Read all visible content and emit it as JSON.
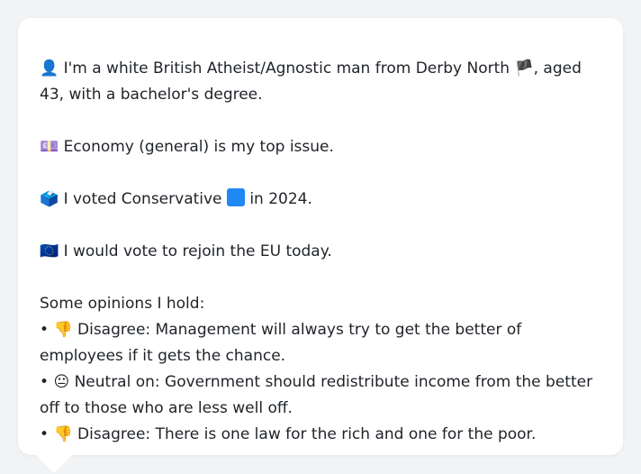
{
  "profile": {
    "intro_icon": "👤",
    "intro_text": "I'm a white British Atheist/Agnostic man from Derby North",
    "flag_icon": "🏴",
    "intro_tail": ", aged 43, with a bachelor's degree.",
    "economy_icon": "💷",
    "economy_text": "Economy (general) is my top issue.",
    "vote_icon": "🗳️",
    "vote_text_1": "I voted Conservative",
    "party_color": "#1f88f3",
    "vote_text_2": "in 2024.",
    "eu_icon": "🇪🇺",
    "eu_text": "I would vote to rejoin the EU today.",
    "opinions_heading": "Some opinions I hold:",
    "opinions": [
      {
        "bullet": "•",
        "icon": "👎",
        "text": "Disagree: Management will always try to get the better of employees if it gets the chance."
      },
      {
        "bullet": "•",
        "icon": "😐",
        "text": "Neutral on: Government should redistribute income from the better off to those who are less well off."
      },
      {
        "bullet": "•",
        "icon": "👎",
        "text": "Disagree: There is one law for the rich and one for the poor."
      }
    ]
  }
}
